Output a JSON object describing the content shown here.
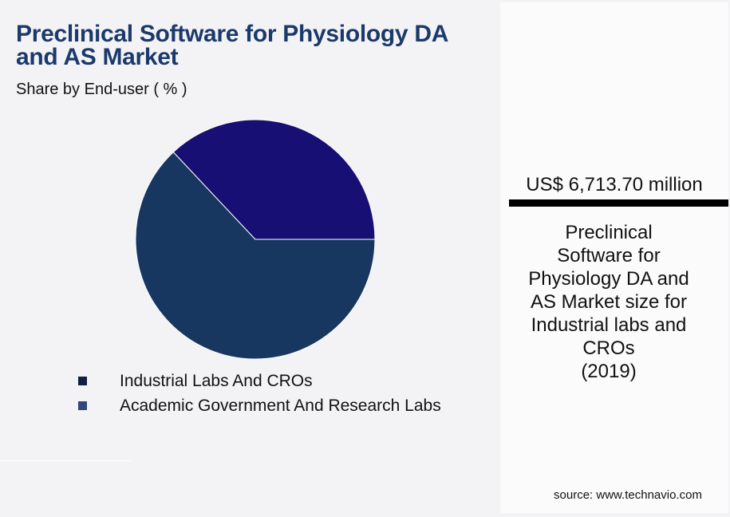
{
  "header": {
    "title": "Preclinical Software for Physiology DA and AS Market",
    "subtitle": "Share by End-user ( % )"
  },
  "legend": {
    "items": [
      {
        "label": "Industrial Labs And CROs",
        "color": "#0f1f45"
      },
      {
        "label": "Academic Government And Research Labs",
        "color": "#2f4779"
      }
    ]
  },
  "side_panel": {
    "market_value": "US$ 6,713.70 million",
    "description_lines": [
      "Preclinical",
      "Software for",
      "Physiology DA and",
      "AS Market size for",
      "Industrial labs and",
      "CROs",
      "(2019)"
    ],
    "source": "source: www.technavio.com"
  },
  "colors": {
    "title": "#1b3a6b",
    "slice_industrial": "#173761",
    "slice_academic": "#170f73",
    "background": "#f3f3f5",
    "panel": "#fbfbfb"
  },
  "chart_data": {
    "type": "pie",
    "title": "Preclinical Software for Physiology DA and AS Market",
    "subtitle": "Share by End-user ( % )",
    "categories": [
      "Industrial Labs And CROs",
      "Academic Government And Research Labs"
    ],
    "values": [
      63,
      37
    ],
    "unit": "%",
    "colors": [
      "#173761",
      "#170f73"
    ],
    "legend_position": "bottom",
    "start_angle_deg": 0,
    "direction": "clockwise-from-3-oclock (Industrial bottom, Academic top)"
  }
}
